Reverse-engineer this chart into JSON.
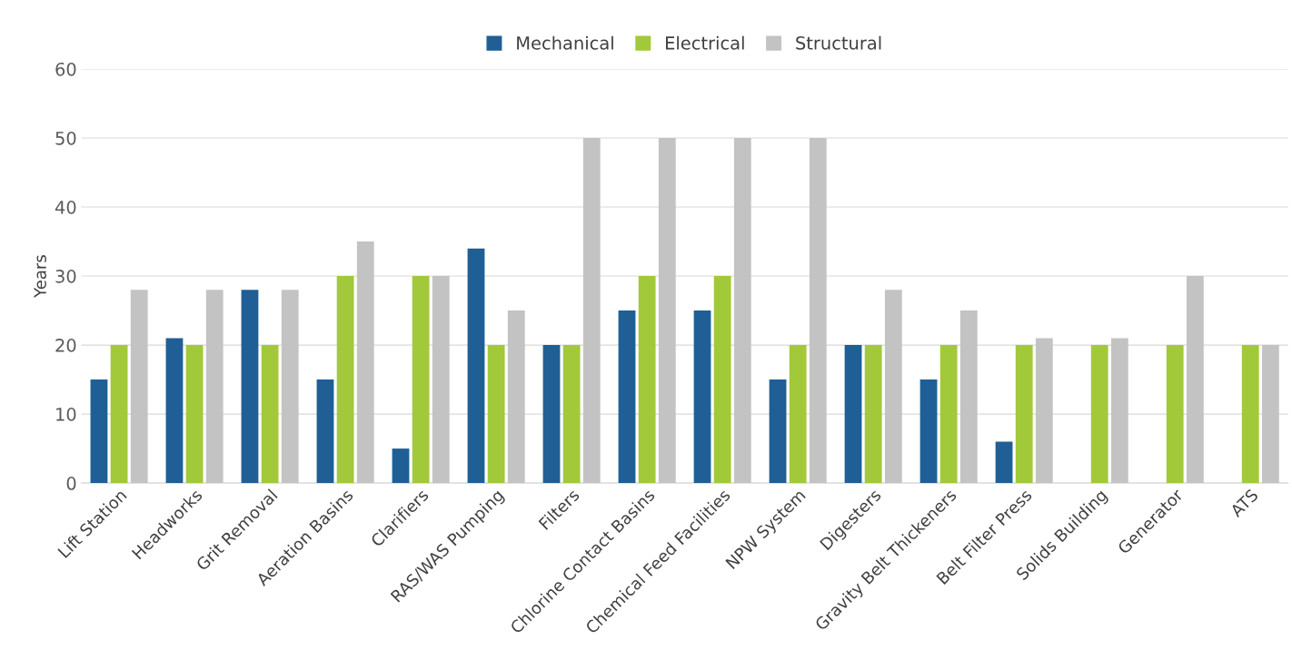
{
  "chart_data": {
    "type": "bar",
    "ylabel": "Years",
    "categories": [
      "Lift Station",
      "Headworks",
      "Grit Removal",
      "Aeration Basins",
      "Clarifiers",
      "RAS/WAS Pumping",
      "Filters",
      "Chlorine Contact Basins",
      "Chemical Feed Facilities",
      "NPW System",
      "Digesters",
      "Gravity Belt Thickeners",
      "Belt Filter Press",
      "Solids Building",
      "Generator",
      "ATS"
    ],
    "series": [
      {
        "name": "Mechanical",
        "color": "#1f5f95",
        "values": [
          15,
          21,
          28,
          15,
          5,
          34,
          20,
          25,
          25,
          15,
          20,
          15,
          6,
          null,
          null,
          null
        ]
      },
      {
        "name": "Electrical",
        "color": "#a2c93a",
        "values": [
          20,
          20,
          20,
          30,
          30,
          20,
          20,
          30,
          30,
          20,
          20,
          20,
          20,
          20,
          20,
          20
        ]
      },
      {
        "name": "Structural",
        "color": "#c3c3c3",
        "values": [
          28,
          28,
          28,
          35,
          30,
          25,
          50,
          50,
          50,
          50,
          28,
          25,
          21,
          21,
          30,
          20
        ]
      }
    ],
    "ylim": [
      0,
      60
    ],
    "yticks": [
      0,
      10,
      20,
      30,
      40,
      50,
      60
    ],
    "grid": "y",
    "legend": "top"
  }
}
